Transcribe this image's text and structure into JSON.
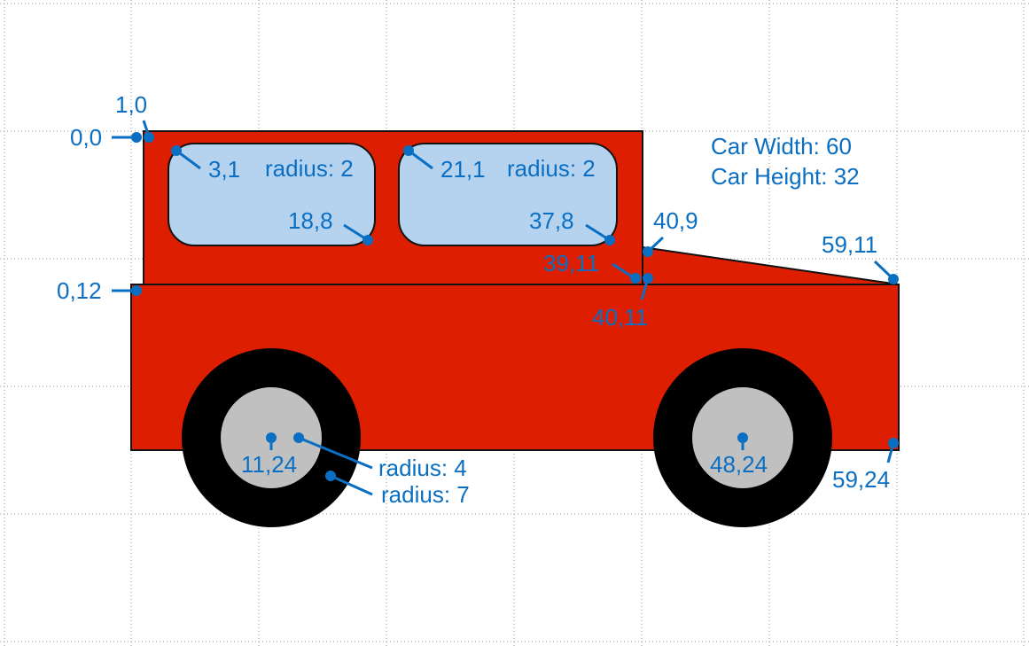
{
  "colors": {
    "body": "#dd1e00",
    "outline": "#111111",
    "window": "#b5d3ef",
    "tire": "#000000",
    "hub": "#c0c0c0",
    "annotation": "#0a6fc2",
    "grid": "#9a9a9a"
  },
  "info": {
    "width_label": "Car Width: 60",
    "height_label": "Car Height: 32"
  },
  "labels": {
    "origin": "0,0",
    "cabin_start": "1,0",
    "window1_tl": "3,1",
    "window1_radius": "radius: 2",
    "window1_br": "18,8",
    "window2_tl": "21,1",
    "window2_radius": "radius: 2",
    "window2_br": "37,8",
    "hood_top": "40,9",
    "nose": "59,11",
    "cabin_corner": "39,11",
    "hood_base": "40,11",
    "body_top": "0,12",
    "rear_wheel_center": "11,24",
    "hub_radius": "radius: 4",
    "tire_radius": "radius: 7",
    "front_wheel_center": "48,24",
    "body_bottom_right": "59,24"
  }
}
